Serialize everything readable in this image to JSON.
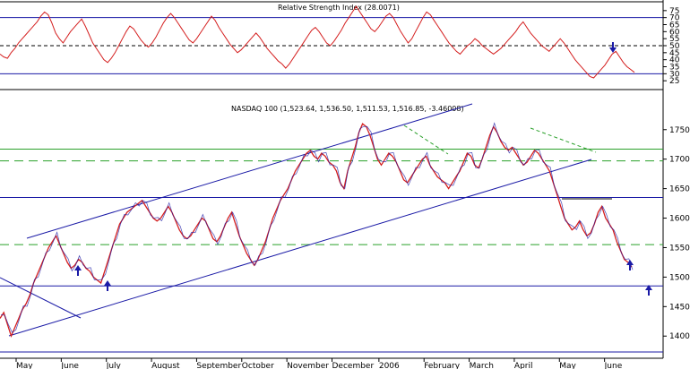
{
  "chart_data": [
    {
      "type": "line",
      "title": "Relative Strength Index (28.0071)",
      "ylim": [
        20,
        80
      ],
      "yticks": [
        25,
        30,
        35,
        40,
        45,
        50,
        55,
        60,
        65,
        70,
        75
      ],
      "reference_lines": [
        {
          "y": 70,
          "style": "solid",
          "color": "#1a1aa6"
        },
        {
          "y": 50,
          "style": "dashed",
          "color": "#000000"
        },
        {
          "y": 30,
          "style": "solid",
          "color": "#1a1aa6"
        }
      ],
      "series": [
        {
          "color": "#d41e1e",
          "values": [
            44,
            42,
            41,
            45,
            48,
            52,
            55,
            58,
            61,
            64,
            67,
            71,
            74,
            72,
            66,
            59,
            55,
            52,
            56,
            60,
            63,
            66,
            69,
            64,
            58,
            52,
            48,
            44,
            40,
            38,
            41,
            45,
            50,
            55,
            60,
            64,
            62,
            58,
            54,
            51,
            49,
            52,
            56,
            61,
            66,
            70,
            73,
            70,
            66,
            62,
            58,
            54,
            52,
            55,
            59,
            63,
            67,
            71,
            68,
            63,
            59,
            55,
            51,
            48,
            45,
            47,
            50,
            53,
            56,
            59,
            56,
            52,
            48,
            45,
            42,
            39,
            37,
            34,
            37,
            41,
            45,
            49,
            53,
            57,
            61,
            63,
            60,
            56,
            52,
            50,
            53,
            57,
            61,
            66,
            70,
            74,
            78,
            74,
            70,
            66,
            62,
            60,
            63,
            67,
            71,
            73,
            70,
            65,
            60,
            56,
            52,
            55,
            60,
            65,
            70,
            74,
            72,
            68,
            64,
            60,
            56,
            52,
            49,
            46,
            44,
            47,
            50,
            52,
            55,
            53,
            50,
            48,
            46,
            44,
            46,
            48,
            51,
            54,
            57,
            60,
            64,
            67,
            63,
            59,
            56,
            53,
            50,
            48,
            46,
            49,
            52,
            55,
            52,
            48,
            44,
            40,
            37,
            34,
            31,
            28,
            27,
            30,
            33,
            36,
            40,
            44,
            46,
            42,
            38,
            35,
            33,
            31
          ]
        }
      ]
    },
    {
      "type": "line",
      "title": "NASDAQ 100 (1,523.64, 1,536.50, 1,511.53, 1,516.85, -3.46008)",
      "ylim": [
        1370,
        1780
      ],
      "yticks": [
        1400,
        1450,
        1500,
        1550,
        1600,
        1650,
        1700,
        1750
      ],
      "x_tick_labels": [
        "May",
        "June",
        "July",
        "August",
        "September",
        "October",
        "November",
        "December",
        "2006",
        "February",
        "March",
        "April",
        "May",
        "June"
      ],
      "reference_lines": [
        {
          "y": 1717,
          "style": "solid",
          "color": "#2aa02a"
        },
        {
          "y": 1697,
          "style": "dashed",
          "color": "#2aa02a"
        },
        {
          "y": 1635,
          "style": "solid",
          "color": "#1a1aa6"
        },
        {
          "y": 1555,
          "style": "dashed",
          "color": "#2aa02a"
        },
        {
          "y": 1485,
          "style": "solid",
          "color": "#1a1aa6"
        }
      ],
      "series": [
        {
          "color": "#1a1aa6",
          "values": [
            1430,
            1440,
            1420,
            1400,
            1415,
            1430,
            1445,
            1455,
            1470,
            1490,
            1505,
            1520,
            1535,
            1550,
            1560,
            1570,
            1555,
            1540,
            1525,
            1515,
            1520,
            1530,
            1525,
            1515,
            1510,
            1500,
            1495,
            1490,
            1510,
            1530,
            1550,
            1570,
            1590,
            1600,
            1610,
            1615,
            1620,
            1625,
            1630,
            1620,
            1610,
            1600,
            1595,
            1600,
            1610,
            1620,
            1610,
            1595,
            1580,
            1570,
            1565,
            1570,
            1580,
            1590,
            1600,
            1595,
            1580,
            1565,
            1560,
            1570,
            1585,
            1600,
            1610,
            1590,
            1570,
            1555,
            1540,
            1530,
            1520,
            1530,
            1545,
            1560,
            1580,
            1600,
            1615,
            1630,
            1640,
            1650,
            1665,
            1680,
            1690,
            1700,
            1710,
            1715,
            1705,
            1700,
            1710,
            1705,
            1695,
            1690,
            1680,
            1660,
            1650,
            1680,
            1700,
            1720,
            1745,
            1760,
            1755,
            1740,
            1720,
            1700,
            1690,
            1700,
            1710,
            1705,
            1695,
            1680,
            1665,
            1660,
            1670,
            1680,
            1690,
            1700,
            1705,
            1690,
            1680,
            1670,
            1665,
            1660,
            1650,
            1660,
            1670,
            1680,
            1695,
            1710,
            1705,
            1690,
            1685,
            1700,
            1720,
            1740,
            1755,
            1745,
            1730,
            1720,
            1715,
            1720,
            1710,
            1700,
            1690,
            1695,
            1705,
            1715,
            1710,
            1700,
            1690,
            1680,
            1660,
            1640,
            1620,
            1600,
            1590,
            1580,
            1585,
            1595,
            1580,
            1570,
            1575,
            1590,
            1610,
            1620,
            1600,
            1590,
            1580,
            1560,
            1545,
            1530,
            1525,
            1517
          ]
        }
      ],
      "annotations": [
        "arrow-up",
        "arrow-up",
        "arrow-up",
        "arrow-up",
        "arrow-down"
      ]
    }
  ]
}
